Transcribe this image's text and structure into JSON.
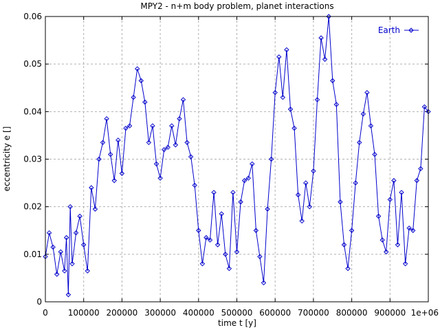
{
  "chart_data": {
    "type": "line",
    "title": "MPY2 - n+m body problem, planet interactions",
    "xlabel": "time t [y]",
    "ylabel": "eccentricity e []",
    "xlim": [
      0,
      1000000
    ],
    "ylim": [
      0,
      0.06
    ],
    "xticks": [
      0,
      100000,
      200000,
      300000,
      400000,
      500000,
      600000,
      700000,
      800000,
      900000,
      1000000
    ],
    "xtick_labels": [
      "0",
      "100000",
      "200000",
      "300000",
      "400000",
      "500000",
      "600000",
      "700000",
      "800000",
      "900000",
      "1e+06"
    ],
    "yticks": [
      0,
      0.01,
      0.02,
      0.03,
      0.04,
      0.05,
      0.06
    ],
    "ytick_labels": [
      "0",
      "0.01",
      "0.02",
      "0.03",
      "0.04",
      "0.05",
      "0.06"
    ],
    "grid": true,
    "legend_position": "top-right",
    "series": [
      {
        "name": "Earth",
        "color": "#0000cc",
        "marker": "diamond",
        "x": [
          0,
          10000,
          20000,
          30000,
          40000,
          50000,
          55000,
          60000,
          65000,
          70000,
          80000,
          90000,
          100000,
          110000,
          120000,
          130000,
          140000,
          150000,
          160000,
          170000,
          180000,
          190000,
          200000,
          210000,
          220000,
          230000,
          240000,
          250000,
          260000,
          270000,
          280000,
          290000,
          300000,
          310000,
          320000,
          330000,
          340000,
          350000,
          360000,
          370000,
          380000,
          390000,
          400000,
          410000,
          420000,
          430000,
          440000,
          450000,
          460000,
          470000,
          480000,
          490000,
          500000,
          510000,
          520000,
          530000,
          540000,
          550000,
          560000,
          570000,
          580000,
          590000,
          600000,
          610000,
          620000,
          630000,
          640000,
          650000,
          660000,
          670000,
          680000,
          690000,
          700000,
          710000,
          720000,
          730000,
          740000,
          750000,
          760000,
          770000,
          780000,
          790000,
          800000,
          810000,
          820000,
          830000,
          840000,
          850000,
          860000,
          870000,
          880000,
          890000,
          900000,
          910000,
          920000,
          930000,
          940000,
          950000,
          960000,
          970000,
          980000,
          990000,
          1000000
        ],
        "y": [
          0.0095,
          0.0145,
          0.0115,
          0.0058,
          0.0105,
          0.0065,
          0.0135,
          0.0015,
          0.02,
          0.008,
          0.0145,
          0.018,
          0.012,
          0.0065,
          0.024,
          0.0195,
          0.03,
          0.0335,
          0.0385,
          0.031,
          0.0255,
          0.034,
          0.027,
          0.0365,
          0.037,
          0.043,
          0.049,
          0.0465,
          0.042,
          0.0335,
          0.037,
          0.029,
          0.026,
          0.032,
          0.0325,
          0.037,
          0.033,
          0.0385,
          0.0425,
          0.0335,
          0.0305,
          0.0245,
          0.015,
          0.008,
          0.0135,
          0.013,
          0.023,
          0.012,
          0.0185,
          0.01,
          0.007,
          0.023,
          0.0105,
          0.021,
          0.0255,
          0.026,
          0.029,
          0.015,
          0.0095,
          0.004,
          0.0195,
          0.03,
          0.044,
          0.0515,
          0.043,
          0.053,
          0.0405,
          0.0365,
          0.0225,
          0.017,
          0.025,
          0.02,
          0.0275,
          0.0425,
          0.0555,
          0.051,
          0.06,
          0.0465,
          0.0415,
          0.021,
          0.012,
          0.007,
          0.015,
          0.025,
          0.0335,
          0.0395,
          0.044,
          0.037,
          0.031,
          0.018,
          0.013,
          0.0105,
          0.0215,
          0.0255,
          0.012,
          0.023,
          0.008,
          0.0155,
          0.015,
          0.0255,
          0.028,
          0.041,
          0.04
        ]
      }
    ]
  }
}
